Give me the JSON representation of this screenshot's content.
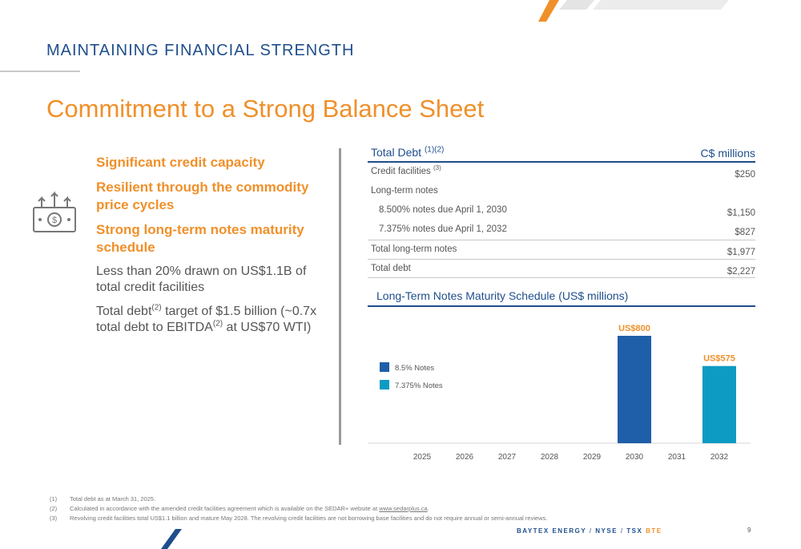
{
  "header": {
    "section_title": "MAINTAINING FINANCIAL STRENGTH",
    "main_title": "Commitment to a Strong Balance Sheet"
  },
  "left": {
    "icon": "money-growth-icon",
    "highlights": [
      "Significant credit capacity",
      "Resilient through the commodity price cycles",
      "Strong long-term notes maturity schedule"
    ],
    "point1": "Less than 20% drawn on US$1.1B of total credit facilities",
    "point2_a": "Total debt",
    "point2_sup1": "(2)",
    "point2_b": " target of $1.5 billion (~0.7x total debt to EBITDA",
    "point2_sup2": "(2)",
    "point2_c": " at US$70 WTI)"
  },
  "debt_table": {
    "title": "Total Debt",
    "title_sup": "(1)(2)",
    "unit": "C$ millions",
    "rows": [
      {
        "label": "Credit facilities",
        "sup": "(3)",
        "value": "$250"
      },
      {
        "label": "Long-term notes",
        "sup": "",
        "value": ""
      },
      {
        "label": "8.500% notes due April 1, 2030",
        "sup": "",
        "value": "$1,150"
      },
      {
        "label": "7.375% notes due April 1, 2032",
        "sup": "",
        "value": "$827"
      },
      {
        "label": "Total long-term notes",
        "sup": "",
        "value": "$1,977"
      },
      {
        "label": "Total debt",
        "sup": "",
        "value": "$2,227"
      }
    ]
  },
  "chart_data": {
    "type": "bar",
    "title": "Long-Term Notes Maturity Schedule (US$ millions)",
    "categories": [
      "2025",
      "2026",
      "2027",
      "2028",
      "2029",
      "2030",
      "2031",
      "2032"
    ],
    "series": [
      {
        "name": "8.5% Notes",
        "color": "#1f5ea8",
        "values": [
          0,
          0,
          0,
          0,
          0,
          800,
          0,
          0
        ]
      },
      {
        "name": "7.375% Notes",
        "color": "#0e9bc3",
        "values": [
          0,
          0,
          0,
          0,
          0,
          0,
          0,
          575
        ]
      }
    ],
    "data_labels": [
      {
        "category": "2030",
        "text": "US$800"
      },
      {
        "category": "2032",
        "text": "US$575"
      }
    ],
    "ylim": [
      0,
      800
    ],
    "legend": "left",
    "grid": false
  },
  "footnotes": [
    {
      "num": "(1)",
      "text": "Total debt as at March 31, 2025.",
      "link": "",
      "after": ""
    },
    {
      "num": "(2)",
      "text": "Calculated in accordance with the amended credit facilities agreement which is available on the SEDAR+ website at ",
      "link": "www.sedarplus.ca",
      "after": "."
    },
    {
      "num": "(3)",
      "text": "Revolving credit facilities total US$1.1 billion and mature May 2028. The revolving credit facilities are not borrowing base facilities and do not require annual or semi-annual reviews.",
      "link": "",
      "after": ""
    }
  ],
  "footer": {
    "brand": "BAYTEX ENERGY",
    "sep": "/",
    "exchange1": "NYSE",
    "exchange2": "TSX",
    "ticker": "BTE",
    "page": "9"
  },
  "colors": {
    "accent_orange": "#f0902a",
    "brand_blue": "#1f4e8c",
    "bar_dark": "#1f5ea8",
    "bar_light": "#0e9bc3"
  }
}
